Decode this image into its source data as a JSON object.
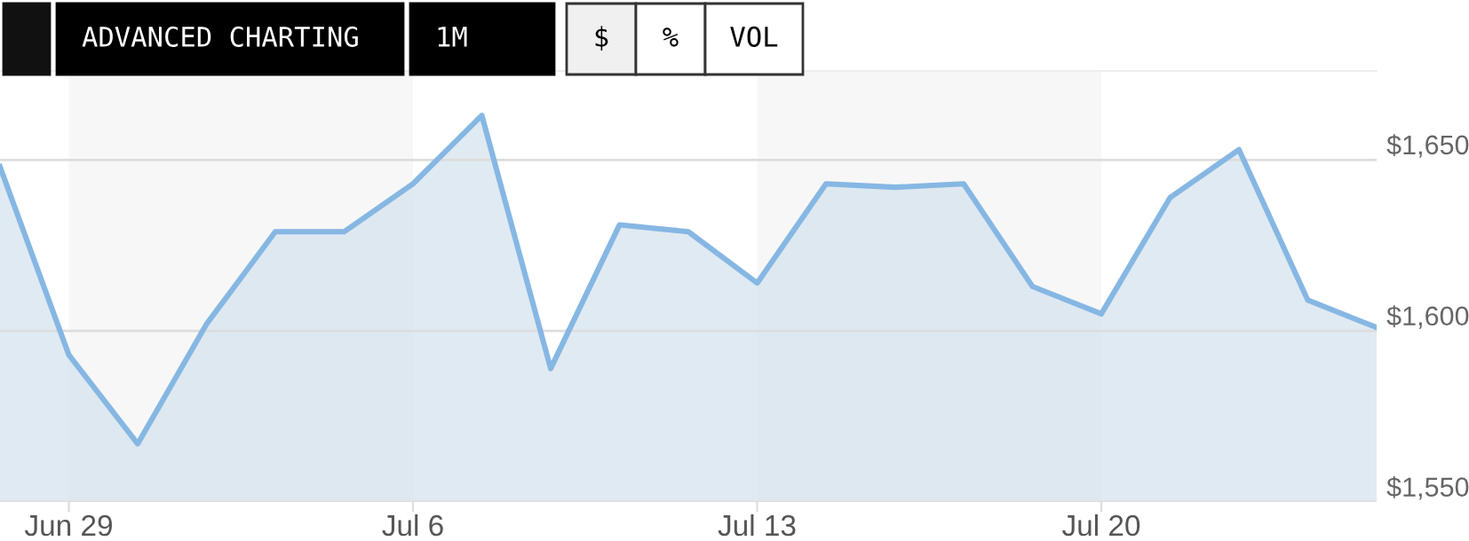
{
  "chart_data": {
    "type": "area",
    "categories": [
      null,
      "Jun 29",
      null,
      null,
      null,
      null,
      "Jul 6",
      null,
      null,
      null,
      null,
      "Jul 13",
      null,
      null,
      null,
      null,
      "Jul 20",
      null,
      null,
      null,
      null
    ],
    "series": [
      {
        "color": "#86b7e3",
        "values": [
          1648,
          1593,
          1567,
          1602,
          1629,
          1629,
          1643,
          1663,
          1589,
          1631,
          1629,
          1614,
          1643,
          1642,
          1643,
          1613,
          1605,
          1639,
          1653,
          1609,
          1601
        ]
      }
    ],
    "ylim": [
      1550,
      1676
    ],
    "yticks": [
      {
        "value": 1550,
        "label": "$1,550"
      },
      {
        "value": 1600,
        "label": "$1,600"
      },
      {
        "value": 1650,
        "label": "$1,650"
      }
    ],
    "grid": "y",
    "bands": [
      {
        "axis": "x",
        "from": "Jun 29",
        "to": "Jul 6",
        "color": "#f7f7f7"
      },
      {
        "axis": "x",
        "from": "Jul 13",
        "to": "Jul 20",
        "color": "#f7f7f7"
      }
    ],
    "annotations": [
      "ADVANCED CHARTING",
      "1M",
      "$",
      "%",
      "VOL"
    ]
  }
}
